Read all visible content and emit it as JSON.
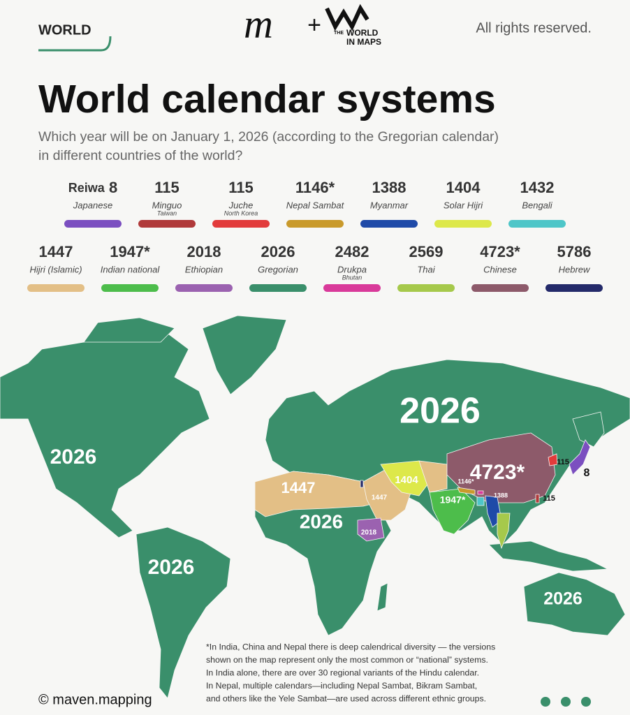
{
  "header": {
    "tag": "WORLD",
    "logo_mark": "m",
    "plus": "+",
    "brand_lines": [
      "THE",
      "WORLD",
      "IN MAPS"
    ],
    "rights": "All rights reserved."
  },
  "title": "World calendar systems",
  "subtitle_lines": [
    "Which year will be on January 1, 2026 (according to the Gregorian calendar)",
    "in different countries of the world?"
  ],
  "legend_rows": [
    [
      {
        "prefix": "Reiwa",
        "year": "8",
        "name": "Japanese",
        "color": "#7b4fc0"
      },
      {
        "year": "115",
        "name": "Minguo",
        "note": "Taiwan",
        "color": "#b03a3a"
      },
      {
        "year": "115",
        "name": "Juche",
        "note": "North Korea",
        "color": "#e23b3b"
      },
      {
        "year": "1146*",
        "name": "Nepal Sambat",
        "color": "#c99a2b"
      },
      {
        "year": "1388",
        "name": "Myanmar",
        "color": "#1f4aa8"
      },
      {
        "year": "1404",
        "name": "Solar Hijri",
        "color": "#dde84a"
      },
      {
        "year": "1432",
        "name": "Bengali",
        "color": "#4ec6c8"
      }
    ],
    [
      {
        "year": "1447",
        "name": "Hijri (Islamic)",
        "color": "#e3bf86"
      },
      {
        "year": "1947*",
        "name": "Indian national",
        "color": "#4dbd4b"
      },
      {
        "year": "2018",
        "name": "Ethiopian",
        "color": "#9b62b0"
      },
      {
        "year": "2026",
        "name": "Gregorian",
        "color": "#3a8f6b"
      },
      {
        "year": "2482",
        "name": "Drukpa",
        "note": "Bhutan",
        "color": "#d93a9a"
      },
      {
        "year": "2569",
        "name": "Thai",
        "color": "#a6c94b"
      },
      {
        "year": "4723*",
        "name": "Chinese",
        "color": "#8d5a6a"
      },
      {
        "year": "5786",
        "name": "Hebrew",
        "color": "#242a6a"
      }
    ]
  ],
  "map_labels": [
    "2026",
    "2026",
    "1447",
    "2026",
    "2026",
    "2026",
    "4723*",
    "1404",
    "1447",
    "1146*",
    "1947*",
    "1388",
    "2018",
    "115",
    "8",
    "115"
  ],
  "footnote_lines": [
    "*In India, China and Nepal there is deep calendrical diversity — the versions",
    "shown on the map  represent only the most common or “national” systems.",
    "In India alone, there are over 30 regional  variants of the Hindu calendar.",
    "In Nepal, multiple calendars—including Nepal Sambat, Bikram Sambat,",
    "and others like the Yele Sambat—are used across different ethnic groups."
  ],
  "credit": "© maven.mapping"
}
